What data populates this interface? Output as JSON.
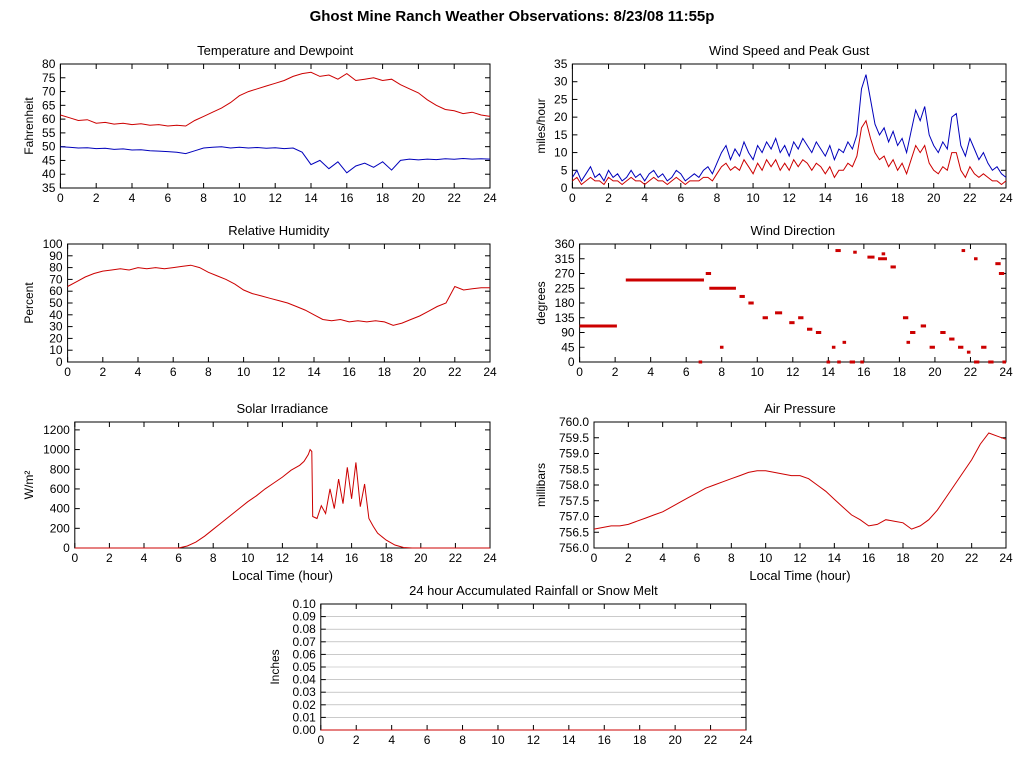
{
  "page": {
    "title": "Ghost Mine Ranch Weather Observations: 8/23/08 11:55p"
  },
  "colors": {
    "red": "#cc0000",
    "blue": "#0000bb",
    "axis": "#000000",
    "grid": "#aaaaaa",
    "background": "#ffffff"
  },
  "chart_data": [
    {
      "id": "temperature",
      "type": "line",
      "title": "Temperature and Dewpoint",
      "xlabel": "",
      "ylabel": "Fahrenheit",
      "xlim": [
        0,
        24
      ],
      "xticks": [
        0,
        2,
        4,
        6,
        8,
        10,
        12,
        14,
        16,
        18,
        20,
        22,
        24
      ],
      "ylim": [
        35,
        80
      ],
      "yticks": [
        35,
        40,
        45,
        50,
        55,
        60,
        65,
        70,
        75,
        80
      ],
      "ydecimals": 0,
      "grid": false,
      "series": [
        {
          "name": "dewpoint",
          "color": "#0000bb",
          "x0": 0,
          "dx": 0.5,
          "y": [
            50,
            49.8,
            49.5,
            49.6,
            49.3,
            49.4,
            49,
            49.2,
            48.8,
            48.9,
            48.5,
            48.4,
            48.2,
            48,
            47.5,
            48.5,
            49.5,
            49.8,
            50,
            49.5,
            49.8,
            49.5,
            49.7,
            49.4,
            49.6,
            49.3,
            49.5,
            48,
            43.5,
            45,
            42,
            44.5,
            40.5,
            43,
            44,
            42.5,
            44.5,
            41.5,
            45,
            45.5,
            45.2,
            45.5,
            45.3,
            45.6,
            45.4,
            45.7,
            45.5,
            45.6,
            45.5
          ]
        },
        {
          "name": "temperature",
          "color": "#cc0000",
          "x0": 0,
          "dx": 0.5,
          "y": [
            61.5,
            60.5,
            59.5,
            59.8,
            58.5,
            58.8,
            58.2,
            58.5,
            58,
            58.3,
            57.8,
            58,
            57.5,
            57.8,
            57.5,
            59.5,
            61,
            62.5,
            64,
            66,
            68.5,
            70,
            71,
            72,
            73,
            74,
            75.5,
            76.5,
            77,
            75.5,
            76,
            74.5,
            76.5,
            74,
            74.5,
            75,
            74,
            74.5,
            72.5,
            71,
            69.5,
            67,
            65,
            63.5,
            63,
            62,
            62.5,
            61.5,
            61
          ]
        }
      ]
    },
    {
      "id": "windspeed",
      "type": "line",
      "title": "Wind Speed and Peak Gust",
      "xlabel": "",
      "ylabel": "miles/hour",
      "xlim": [
        0,
        24
      ],
      "xticks": [
        0,
        2,
        4,
        6,
        8,
        10,
        12,
        14,
        16,
        18,
        20,
        22,
        24
      ],
      "ylim": [
        0,
        35
      ],
      "yticks": [
        0,
        5,
        10,
        15,
        20,
        25,
        30,
        35
      ],
      "ydecimals": 0,
      "grid": false,
      "series": [
        {
          "name": "peak-gust",
          "color": "#0000bb",
          "x0": 0,
          "dx": 0.25,
          "y": [
            3,
            5,
            2,
            4,
            6,
            3,
            4,
            2,
            5,
            3,
            4,
            2,
            3,
            5,
            3,
            4,
            2,
            4,
            5,
            3,
            4,
            2,
            3,
            5,
            4,
            2,
            3,
            4,
            3,
            5,
            6,
            4,
            7,
            10,
            12,
            8,
            11,
            9,
            13,
            10,
            8,
            12,
            10,
            13,
            11,
            14,
            10,
            12,
            9,
            13,
            11,
            14,
            12,
            10,
            13,
            11,
            9,
            12,
            8,
            11,
            10,
            13,
            11,
            15,
            28,
            32,
            25,
            18,
            15,
            17,
            13,
            16,
            12,
            14,
            10,
            16,
            22,
            19,
            23,
            15,
            12,
            10,
            13,
            11,
            20,
            21,
            12,
            9,
            14,
            11,
            8,
            10,
            7,
            5,
            6,
            4,
            3
          ]
        },
        {
          "name": "wind-speed",
          "color": "#cc0000",
          "x0": 0,
          "dx": 0.25,
          "y": [
            2,
            3,
            1,
            2,
            3,
            2,
            2,
            1,
            3,
            2,
            2,
            1,
            2,
            3,
            2,
            2,
            1,
            2,
            3,
            2,
            2,
            1,
            2,
            3,
            2,
            1,
            2,
            2,
            2,
            3,
            3,
            2,
            4,
            6,
            7,
            5,
            6,
            5,
            8,
            6,
            4,
            7,
            5,
            8,
            6,
            8,
            5,
            7,
            5,
            8,
            6,
            8,
            7,
            5,
            7,
            6,
            4,
            6,
            3,
            5,
            5,
            7,
            6,
            9,
            17,
            19,
            14,
            10,
            8,
            9,
            6,
            8,
            5,
            7,
            4,
            8,
            12,
            10,
            12,
            7,
            5,
            4,
            6,
            5,
            10,
            10,
            5,
            3,
            6,
            4,
            3,
            4,
            3,
            2,
            2,
            1,
            2
          ]
        }
      ]
    },
    {
      "id": "humidity",
      "type": "line",
      "title": "Relative Humidity",
      "xlabel": "",
      "ylabel": "Percent",
      "xlim": [
        0,
        24
      ],
      "xticks": [
        0,
        2,
        4,
        6,
        8,
        10,
        12,
        14,
        16,
        18,
        20,
        22,
        24
      ],
      "ylim": [
        0,
        100
      ],
      "yticks": [
        0,
        10,
        20,
        30,
        40,
        50,
        60,
        70,
        80,
        90,
        100
      ],
      "ydecimals": 0,
      "grid": false,
      "series": [
        {
          "name": "relative-humidity",
          "color": "#cc0000",
          "x0": 0,
          "dx": 0.5,
          "y": [
            64,
            68,
            72,
            75,
            77,
            78,
            79,
            78,
            80,
            79,
            80,
            79,
            80,
            81,
            82,
            80,
            76,
            73,
            70,
            66,
            61,
            58,
            56,
            54,
            52,
            50,
            47,
            44,
            40,
            36,
            35,
            36,
            34,
            35,
            34,
            35,
            34,
            31,
            33,
            36,
            39,
            43,
            47,
            50,
            64,
            61,
            62,
            63,
            63
          ]
        }
      ]
    },
    {
      "id": "winddir",
      "type": "scatter",
      "title": "Wind Direction",
      "xlabel": "",
      "ylabel": "degrees",
      "xlim": [
        0,
        24
      ],
      "xticks": [
        0,
        2,
        4,
        6,
        8,
        10,
        12,
        14,
        16,
        18,
        20,
        22,
        24
      ],
      "ylim": [
        0,
        360
      ],
      "yticks": [
        0,
        45,
        90,
        135,
        180,
        225,
        270,
        315,
        360
      ],
      "ydecimals": 0,
      "grid": false,
      "segment_color": "#cc0000",
      "segments": [
        [
          0,
          2.1,
          110
        ],
        [
          2.6,
          7,
          250
        ],
        [
          6.7,
          6.9,
          0
        ],
        [
          7.1,
          7.4,
          270
        ],
        [
          7.3,
          8.8,
          225
        ],
        [
          7.9,
          8.1,
          45
        ],
        [
          9,
          9.3,
          200
        ],
        [
          9.5,
          9.8,
          180
        ],
        [
          10.3,
          10.6,
          135
        ],
        [
          11,
          11.4,
          150
        ],
        [
          11.8,
          12.1,
          120
        ],
        [
          12.3,
          12.6,
          135
        ],
        [
          12.8,
          13.1,
          100
        ],
        [
          13.3,
          13.6,
          90
        ],
        [
          13.9,
          14.1,
          0
        ],
        [
          14.2,
          14.4,
          45
        ],
        [
          14.4,
          14.7,
          340
        ],
        [
          14.5,
          14.7,
          0
        ],
        [
          14.8,
          15,
          60
        ],
        [
          15.2,
          15.5,
          0
        ],
        [
          15.4,
          15.6,
          335
        ],
        [
          15.8,
          16,
          0
        ],
        [
          16.2,
          16.6,
          320
        ],
        [
          16.8,
          17.3,
          315
        ],
        [
          17,
          17.2,
          330
        ],
        [
          17.5,
          17.8,
          290
        ],
        [
          18.2,
          18.5,
          135
        ],
        [
          18.4,
          18.6,
          60
        ],
        [
          18.6,
          18.9,
          90
        ],
        [
          19.2,
          19.5,
          110
        ],
        [
          19.7,
          20,
          45
        ],
        [
          20.3,
          20.6,
          90
        ],
        [
          20.8,
          21.1,
          70
        ],
        [
          21.3,
          21.6,
          45
        ],
        [
          21.5,
          21.7,
          340
        ],
        [
          21.8,
          22,
          30
        ],
        [
          22.2,
          22.4,
          315
        ],
        [
          22.2,
          22.5,
          0
        ],
        [
          22.6,
          22.9,
          45
        ],
        [
          23,
          23.3,
          0
        ],
        [
          23.4,
          23.7,
          300
        ],
        [
          23.6,
          23.9,
          270
        ],
        [
          23.8,
          24,
          0
        ]
      ]
    },
    {
      "id": "solar",
      "type": "line",
      "title": "Solar Irradiance",
      "xlabel": "Local Time (hour)",
      "ylabel": "W/m²",
      "xlim": [
        0,
        24
      ],
      "xticks": [
        0,
        2,
        4,
        6,
        8,
        10,
        12,
        14,
        16,
        18,
        20,
        22,
        24
      ],
      "ylim": [
        0,
        1280
      ],
      "yticks": [
        0,
        200,
        400,
        600,
        800,
        1000,
        1200
      ],
      "ydecimals": 0,
      "grid": false,
      "series": [
        {
          "name": "solar-irradiance",
          "color": "#cc0000",
          "x": [
            0,
            1,
            2,
            3,
            4,
            5,
            6,
            6.5,
            7,
            7.5,
            8,
            8.5,
            9,
            9.5,
            10,
            10.5,
            11,
            11.5,
            12,
            12.5,
            13,
            13.25,
            13.5,
            13.6,
            13.7,
            13.75,
            14,
            14.25,
            14.5,
            14.75,
            15,
            15.25,
            15.5,
            15.75,
            16,
            16.25,
            16.5,
            16.75,
            17,
            17.25,
            17.5,
            18,
            18.5,
            19,
            19.5,
            20,
            21,
            22,
            23,
            24
          ],
          "y": [
            0,
            0,
            0,
            0,
            0,
            0,
            0,
            20,
            60,
            120,
            190,
            260,
            330,
            400,
            470,
            530,
            600,
            660,
            720,
            790,
            840,
            880,
            950,
            1000,
            980,
            320,
            300,
            430,
            350,
            600,
            400,
            700,
            450,
            820,
            500,
            870,
            420,
            650,
            300,
            220,
            150,
            80,
            30,
            5,
            0,
            0,
            0,
            0,
            0,
            0
          ]
        }
      ]
    },
    {
      "id": "pressure",
      "type": "line",
      "title": "Air Pressure",
      "xlabel": "Local Time (hour)",
      "ylabel": "millibars",
      "xlim": [
        0,
        24
      ],
      "xticks": [
        0,
        2,
        4,
        6,
        8,
        10,
        12,
        14,
        16,
        18,
        20,
        22,
        24
      ],
      "ylim": [
        756.0,
        760.0
      ],
      "yticks": [
        756.0,
        756.5,
        757.0,
        757.5,
        758.0,
        758.5,
        759.0,
        759.5,
        760.0
      ],
      "ydecimals": 1,
      "grid": false,
      "series": [
        {
          "name": "air-pressure",
          "color": "#cc0000",
          "x0": 0,
          "dx": 0.5,
          "y": [
            756.6,
            756.65,
            756.7,
            756.7,
            756.75,
            756.85,
            756.95,
            757.05,
            757.15,
            757.3,
            757.45,
            757.6,
            757.75,
            757.9,
            758,
            758.1,
            758.2,
            758.3,
            758.4,
            758.45,
            758.45,
            758.4,
            758.35,
            758.3,
            758.3,
            758.2,
            758,
            757.8,
            757.55,
            757.3,
            757.05,
            756.9,
            756.7,
            756.75,
            756.9,
            756.85,
            756.8,
            756.6,
            756.7,
            756.9,
            757.2,
            757.6,
            758,
            758.4,
            758.8,
            759.3,
            759.65,
            759.55,
            759.45
          ]
        }
      ]
    },
    {
      "id": "rain",
      "type": "line",
      "title": "24 hour Accumulated Rainfall or Snow Melt",
      "xlabel": "",
      "ylabel": "Inches",
      "xlim": [
        0,
        24
      ],
      "xticks": [
        0,
        2,
        4,
        6,
        8,
        10,
        12,
        14,
        16,
        18,
        20,
        22,
        24
      ],
      "ylim": [
        0,
        0.1
      ],
      "yticks": [
        0,
        0.01,
        0.02,
        0.03,
        0.04,
        0.05,
        0.06,
        0.07,
        0.08,
        0.09,
        0.1
      ],
      "ydecimals": 2,
      "grid": true,
      "series": [
        {
          "name": "rainfall",
          "color": "#cc0000",
          "x": [
            0,
            24
          ],
          "y": [
            0,
            0
          ]
        }
      ]
    }
  ]
}
